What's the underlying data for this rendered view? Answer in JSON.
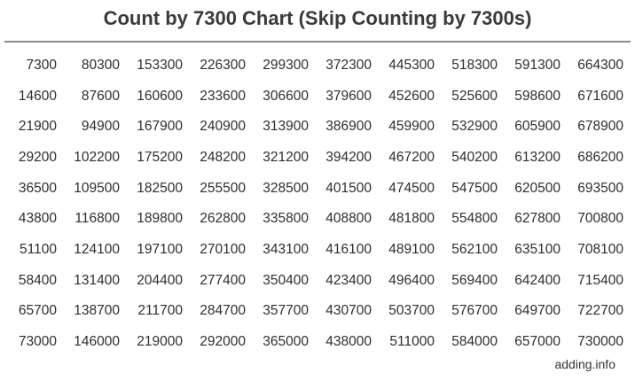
{
  "title": "Count by 7300 Chart (Skip Counting by 7300s)",
  "rows": [
    [
      "7300",
      "80300",
      "153300",
      "226300",
      "299300",
      "372300",
      "445300",
      "518300",
      "591300",
      "664300"
    ],
    [
      "14600",
      "87600",
      "160600",
      "233600",
      "306600",
      "379600",
      "452600",
      "525600",
      "598600",
      "671600"
    ],
    [
      "21900",
      "94900",
      "167900",
      "240900",
      "313900",
      "386900",
      "459900",
      "532900",
      "605900",
      "678900"
    ],
    [
      "29200",
      "102200",
      "175200",
      "248200",
      "321200",
      "394200",
      "467200",
      "540200",
      "613200",
      "686200"
    ],
    [
      "36500",
      "109500",
      "182500",
      "255500",
      "328500",
      "401500",
      "474500",
      "547500",
      "620500",
      "693500"
    ],
    [
      "43800",
      "116800",
      "189800",
      "262800",
      "335800",
      "408800",
      "481800",
      "554800",
      "627800",
      "700800"
    ],
    [
      "51100",
      "124100",
      "197100",
      "270100",
      "343100",
      "416100",
      "489100",
      "562100",
      "635100",
      "708100"
    ],
    [
      "58400",
      "131400",
      "204400",
      "277400",
      "350400",
      "423400",
      "496400",
      "569400",
      "642400",
      "715400"
    ],
    [
      "65700",
      "138700",
      "211700",
      "284700",
      "357700",
      "430700",
      "503700",
      "576700",
      "649700",
      "722700"
    ],
    [
      "73000",
      "146000",
      "219000",
      "292000",
      "365000",
      "438000",
      "511000",
      "584000",
      "657000",
      "730000"
    ]
  ],
  "footer": "adding.info"
}
